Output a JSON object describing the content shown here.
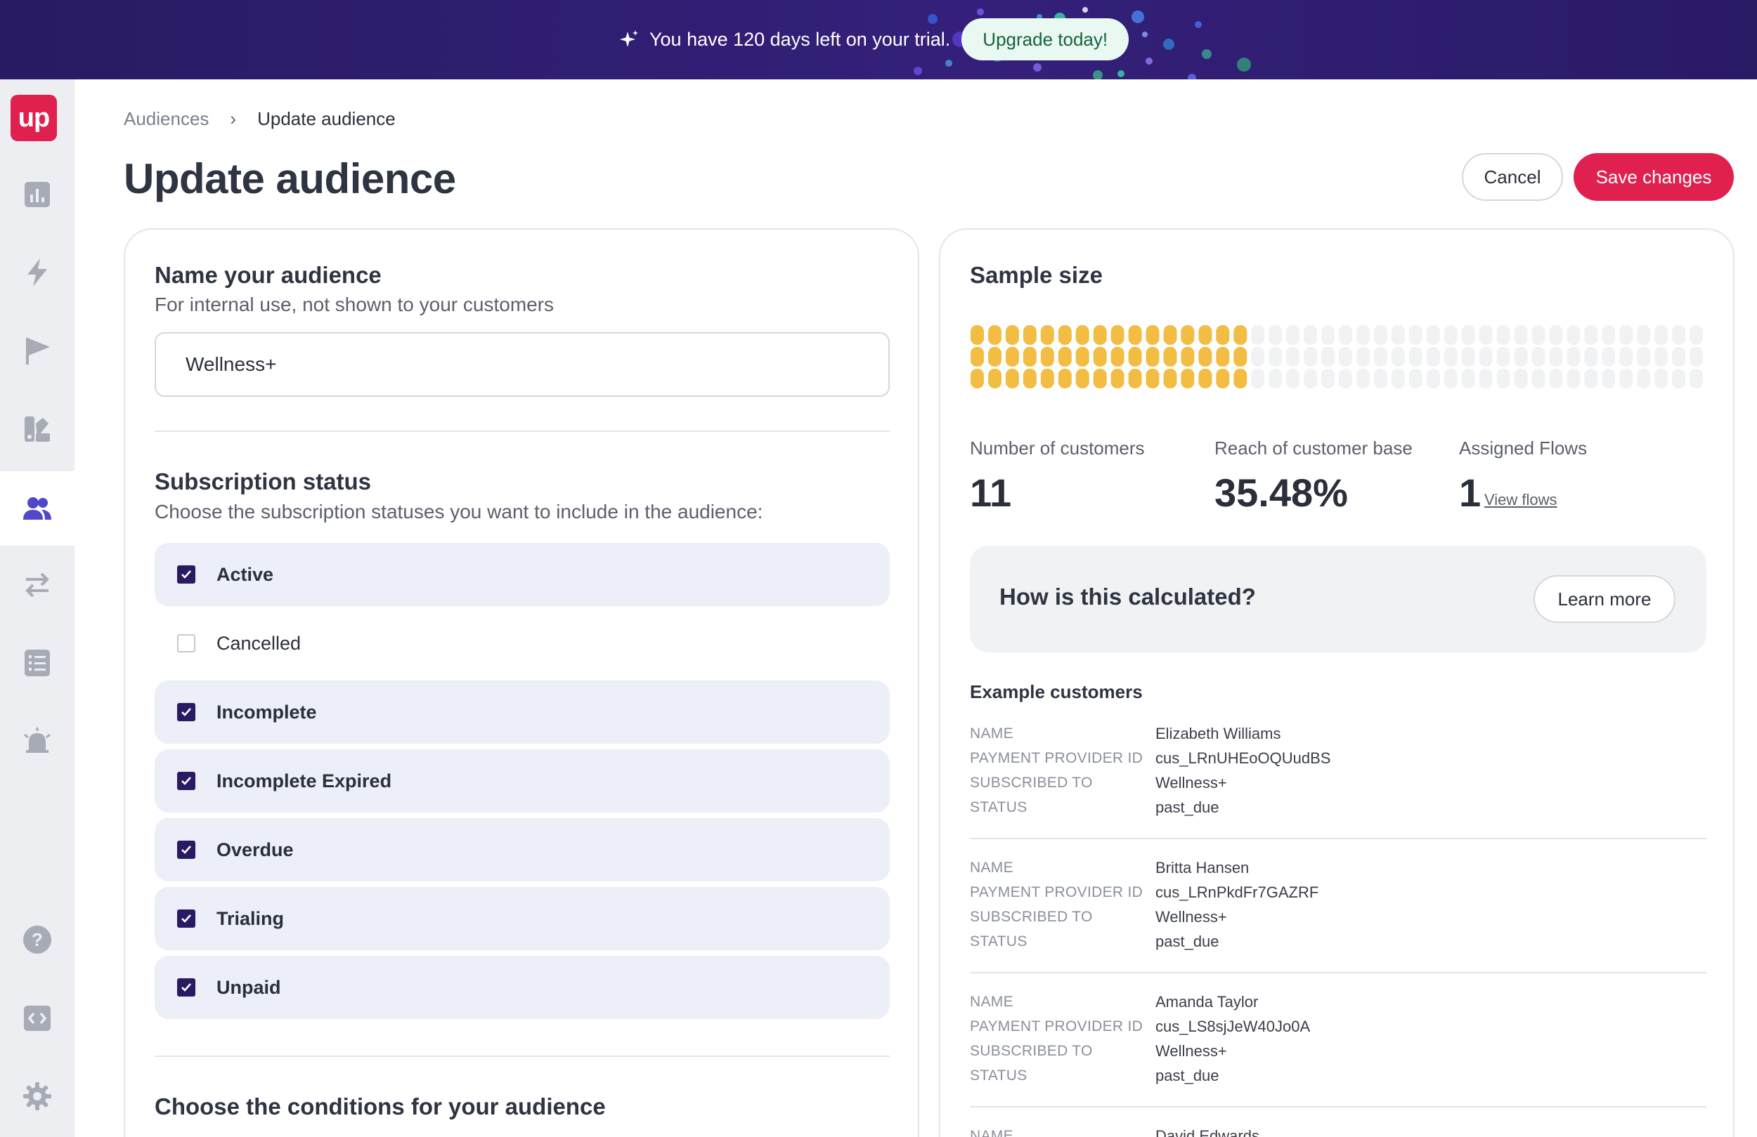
{
  "banner": {
    "text": "You have 120 days left on your trial.",
    "cta": "Upgrade today!"
  },
  "sidebar": {
    "logo": "up",
    "items": [
      {
        "icon": "bar-chart-icon",
        "active": false
      },
      {
        "icon": "lightning-icon",
        "active": false
      },
      {
        "icon": "flag-icon",
        "active": false
      },
      {
        "icon": "palette-icon",
        "active": false
      },
      {
        "icon": "users-icon",
        "active": true
      },
      {
        "icon": "swap-arrows-icon",
        "active": false
      },
      {
        "icon": "checklist-icon",
        "active": false
      },
      {
        "icon": "alarm-bell-icon",
        "active": false
      },
      {
        "icon": "help-icon",
        "active": false
      },
      {
        "icon": "code-icon",
        "active": false
      },
      {
        "icon": "gear-icon",
        "active": false
      }
    ]
  },
  "breadcrumb": {
    "parent": "Audiences",
    "current": "Update audience"
  },
  "header": {
    "title": "Update audience",
    "cancel_label": "Cancel",
    "save_label": "Save changes"
  },
  "name_section": {
    "title": "Name your audience",
    "subtitle": "For internal use, not shown to your customers",
    "value": "Wellness+"
  },
  "status_section": {
    "title": "Subscription status",
    "subtitle": "Choose the subscription statuses you want to include in the audience:",
    "options": [
      {
        "label": "Active",
        "checked": true
      },
      {
        "label": "Cancelled",
        "checked": false
      },
      {
        "label": "Incomplete",
        "checked": true
      },
      {
        "label": "Incomplete Expired",
        "checked": true
      },
      {
        "label": "Overdue",
        "checked": true
      },
      {
        "label": "Trialing",
        "checked": true
      },
      {
        "label": "Unpaid",
        "checked": true
      }
    ]
  },
  "conditions_section": {
    "title": "Choose the conditions for your audience"
  },
  "sample": {
    "title": "Sample size",
    "filled_fraction": 0.3548,
    "colors": {
      "filled": "#f2bd42",
      "empty": "#f1f2f4"
    },
    "stats": {
      "customers_label": "Number of customers",
      "customers_value": "11",
      "reach_label": "Reach of customer base",
      "reach_value": "35.48%",
      "flows_label": "Assigned Flows",
      "flows_value": "1",
      "flows_link": "View flows"
    },
    "calc_question": "How is this calculated?",
    "learn_more": "Learn more",
    "examples_title": "Example customers",
    "keys": {
      "name": "NAME",
      "provider": "PAYMENT PROVIDER ID",
      "subscribed": "SUBSCRIBED TO",
      "status": "STATUS"
    },
    "customers": [
      {
        "name": "Elizabeth Williams",
        "provider_id": "cus_LRnUHEoOQUudBS",
        "subscribed_to": "Wellness+",
        "status": "past_due"
      },
      {
        "name": "Britta Hansen",
        "provider_id": "cus_LRnPkdFr7GAZRF",
        "subscribed_to": "Wellness+",
        "status": "past_due"
      },
      {
        "name": "Amanda Taylor",
        "provider_id": "cus_LS8sjJeW40Jo0A",
        "subscribed_to": "Wellness+",
        "status": "past_due"
      },
      {
        "name": "David Edwards"
      }
    ]
  },
  "theme": {
    "brand": "#e0204f",
    "banner_bg": "#2a1a63",
    "checkbox": "#2a1a63"
  }
}
